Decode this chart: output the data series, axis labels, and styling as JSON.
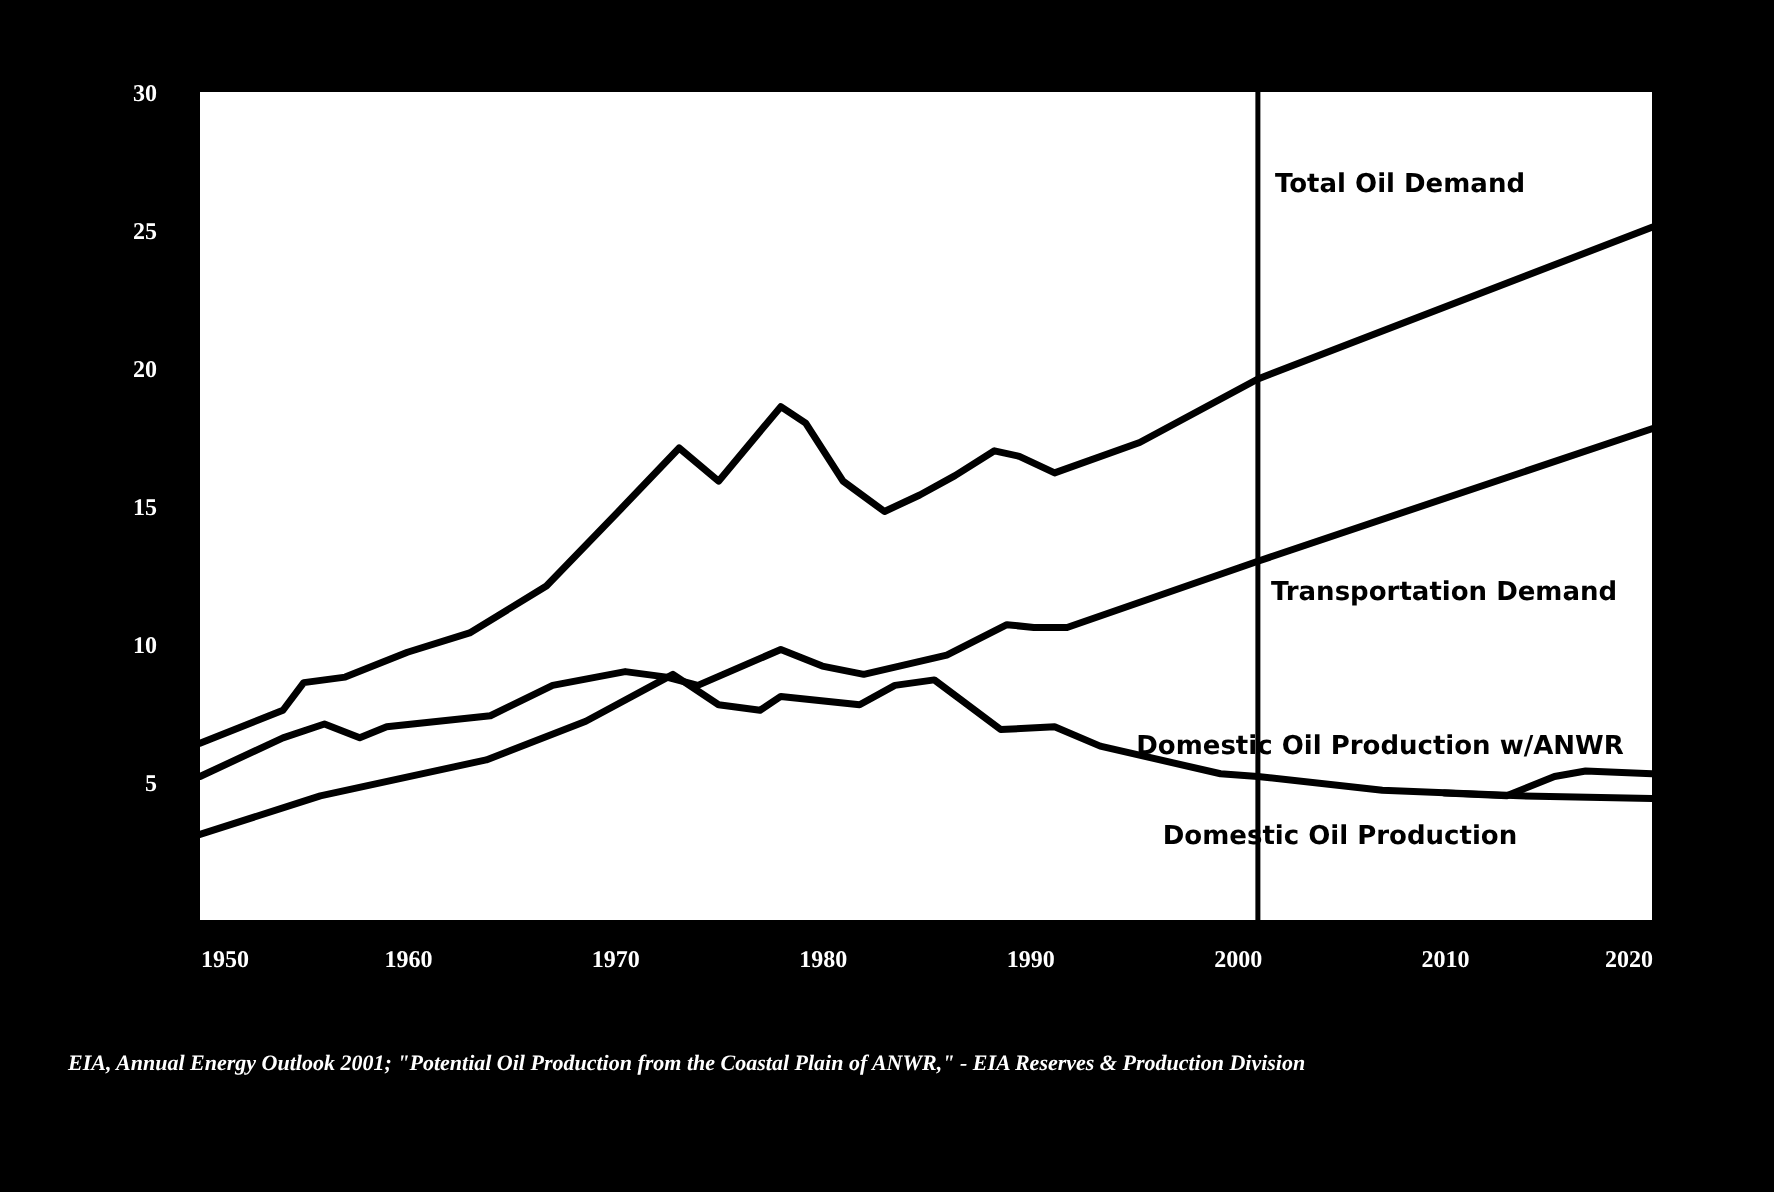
{
  "chart_data": {
    "type": "line",
    "annotations": [
      "EIA, Annual Energy Outlook 2001; \"Potential Oil Production from the Coastal Plain of ANWR,\" - EIA Reserves & Production Division"
    ],
    "xlim": [
      1950,
      2020
    ],
    "xticks": [
      1950,
      1960,
      1970,
      1980,
      1990,
      2000,
      2010,
      2020
    ],
    "ylim": [
      0,
      30
    ],
    "yticks": [
      5,
      10,
      15,
      20,
      25,
      30
    ],
    "grid": false,
    "legend": false,
    "marker": "none",
    "line_style": "solid",
    "ref_lines": [
      {
        "axis": "x",
        "value": 2001,
        "color": "#000000"
      }
    ],
    "series": [
      {
        "name": "Total Oil Demand",
        "color": "#000000",
        "x": [
          1950,
          1954,
          1955,
          1957,
          1960,
          1963,
          1966.7,
          1970.3,
          1973.1,
          1975,
          1978,
          1979.2,
          1981,
          1983,
          1984.7,
          1986.4,
          1988.3,
          1989.5,
          1991.2,
          1995.3,
          2001,
          2020
        ],
        "values": [
          6.4,
          7.6,
          8.6,
          8.8,
          9.7,
          10.4,
          12.1,
          14.9,
          17.1,
          15.9,
          18.6,
          18.0,
          15.9,
          14.8,
          15.4,
          16.1,
          17.0,
          16.8,
          16.2,
          17.3,
          19.6,
          25.1
        ]
      },
      {
        "name": "Transportation Demand",
        "color": "#000000",
        "x": [
          1950,
          1954,
          1956,
          1957.7,
          1959,
          1964,
          1967,
          1970.5,
          1972.5,
          1974,
          1978,
          1980,
          1982,
          1986,
          1988.9,
          1990.2,
          1991.8,
          2001,
          2020
        ],
        "values": [
          5.2,
          6.6,
          7.1,
          6.6,
          7.0,
          7.4,
          8.5,
          9.0,
          8.8,
          8.5,
          9.8,
          9.2,
          8.9,
          9.6,
          10.7,
          10.6,
          10.6,
          13.0,
          17.8
        ]
      },
      {
        "name": "Domestic Oil Production w/ANWR",
        "color": "#000000",
        "x": [
          2010,
          2013,
          2015.3,
          2016.8,
          2020
        ],
        "values": [
          4.6,
          4.5,
          5.2,
          5.4,
          5.3
        ]
      },
      {
        "name": "Domestic Oil Production",
        "color": "#000000",
        "x": [
          1950,
          1955.8,
          1963.8,
          1968.6,
          1972.8,
          1975,
          1977,
          1978,
          1981.8,
          1983.5,
          1985.4,
          1988.6,
          1991.2,
          1993.4,
          1999.2,
          2001,
          2007,
          2013.6,
          2020
        ],
        "values": [
          3.1,
          4.5,
          5.8,
          7.2,
          8.9,
          7.8,
          7.6,
          8.1,
          7.8,
          8.5,
          8.7,
          6.9,
          7.0,
          6.3,
          5.3,
          5.2,
          4.7,
          4.5,
          4.4
        ]
      }
    ]
  }
}
